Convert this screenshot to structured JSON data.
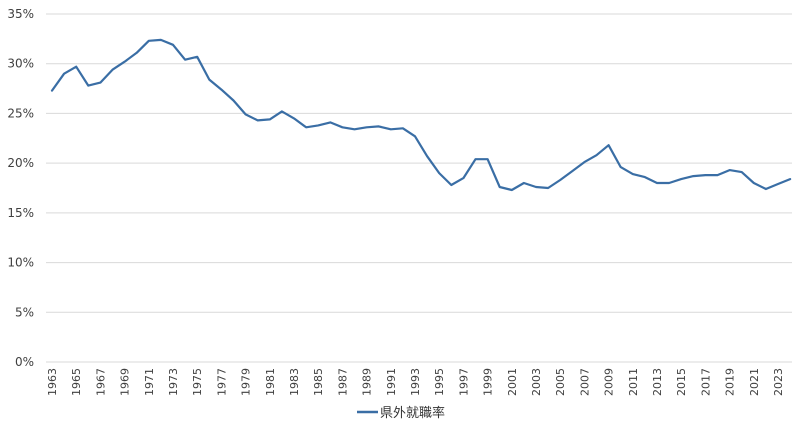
{
  "chart_data": {
    "type": "line",
    "title": "",
    "xlabel": "",
    "ylabel": "",
    "ylim": [
      0,
      35
    ],
    "yticks": [
      "0%",
      "5%",
      "10%",
      "15%",
      "20%",
      "25%",
      "30%",
      "35%"
    ],
    "grid": true,
    "legend_position": "bottom",
    "x_tick_labels": [
      "1963",
      "1965",
      "1967",
      "1969",
      "1971",
      "1973",
      "1975",
      "1977",
      "1979",
      "1981",
      "1983",
      "1985",
      "1987",
      "1989",
      "1991",
      "1993",
      "1995",
      "1997",
      "1999",
      "2001",
      "2003",
      "2005",
      "2007",
      "2009",
      "2011",
      "2013",
      "2015",
      "2017",
      "2019",
      "2021",
      "2023"
    ],
    "x": [
      1963,
      1964,
      1965,
      1966,
      1967,
      1968,
      1969,
      1970,
      1971,
      1972,
      1973,
      1974,
      1975,
      1976,
      1977,
      1978,
      1979,
      1980,
      1981,
      1982,
      1983,
      1984,
      1985,
      1986,
      1987,
      1988,
      1989,
      1990,
      1991,
      1992,
      1993,
      1994,
      1995,
      1996,
      1997,
      1998,
      1999,
      2000,
      2001,
      2002,
      2003,
      2004,
      2005,
      2006,
      2007,
      2008,
      2009,
      2010,
      2011,
      2012,
      2013,
      2014,
      2015,
      2016,
      2017,
      2018,
      2019,
      2020,
      2021,
      2022,
      2023,
      2024
    ],
    "series": [
      {
        "name": "県外就職率",
        "color": "#3a6ea5",
        "values": [
          27.3,
          29.0,
          29.7,
          27.8,
          28.1,
          29.4,
          30.2,
          31.1,
          32.3,
          32.4,
          31.9,
          30.4,
          30.7,
          28.4,
          27.4,
          26.3,
          24.9,
          24.3,
          24.4,
          25.2,
          24.5,
          23.6,
          23.8,
          24.1,
          23.6,
          23.4,
          23.6,
          23.7,
          23.4,
          23.5,
          22.7,
          20.7,
          19.0,
          17.8,
          18.5,
          20.4,
          20.4,
          17.6,
          17.3,
          18.0,
          17.6,
          17.5,
          18.3,
          19.2,
          20.1,
          20.8,
          21.8,
          19.6,
          18.9,
          18.6,
          18.0,
          18.0,
          18.4,
          18.7,
          18.8,
          18.8,
          19.3,
          19.1,
          18.0,
          17.4,
          17.9,
          18.4
        ]
      }
    ]
  },
  "legend": {
    "label": "県外就職率"
  }
}
